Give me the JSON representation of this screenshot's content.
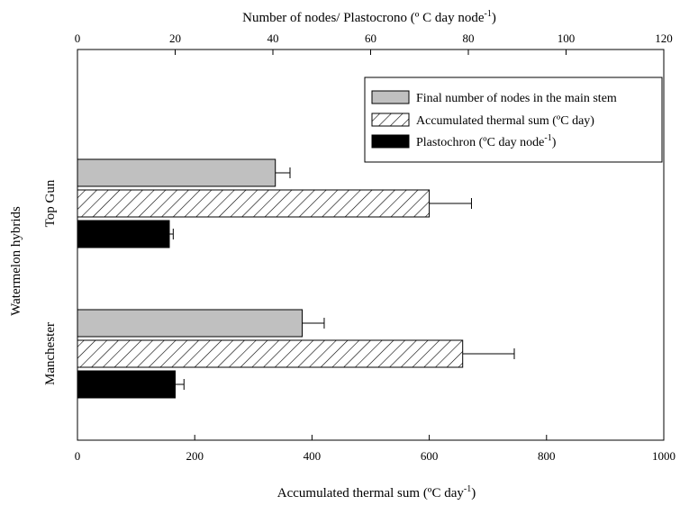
{
  "chart_data": {
    "type": "bar",
    "orientation": "horizontal",
    "categories": [
      "Top Gun",
      "Manchester"
    ],
    "ylabel": "Watermelon hybrids",
    "bottom_axis": {
      "label": "Accumulated thermal sum (ºC day",
      "label_sup": "-1",
      "label_tail": ")",
      "range": [
        0,
        1000
      ],
      "ticks": [
        "0",
        "200",
        "400",
        "600",
        "800",
        "1000"
      ]
    },
    "top_axis": {
      "label": "Number of nodes/ Plastocrono (º C day node",
      "label_sup": "-1",
      "label_tail": ")",
      "range": [
        0,
        120
      ],
      "ticks": [
        "0",
        "20",
        "40",
        "60",
        "80",
        "100",
        "120"
      ]
    },
    "series": [
      {
        "name": "Final number of nodes in the main stem",
        "axis": "top",
        "pattern": "gray",
        "values": [
          40.5,
          46
        ],
        "errors": [
          3,
          4.5
        ]
      },
      {
        "name": "Accumulated thermal sum (ºC day)",
        "axis": "bottom",
        "pattern": "hatch",
        "values": [
          600,
          657
        ],
        "errors": [
          72,
          88
        ]
      },
      {
        "name": "Plastochron (ºC day node",
        "name_sup": "-1",
        "name_tail": ")",
        "axis": "top",
        "pattern": "black",
        "values": [
          18.8,
          20
        ],
        "errors": [
          0.8,
          1.8
        ]
      }
    ],
    "legend": "top-right",
    "grid": false
  }
}
